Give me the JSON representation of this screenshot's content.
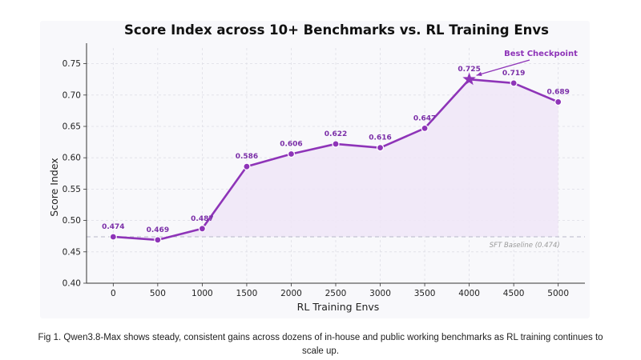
{
  "caption": "Fig 1. Qwen3.8-Max shows steady, consistent gains across dozens of in-house and public working benchmarks as RL training continues to scale up.",
  "colors": {
    "line": "#8e34b8",
    "fill": "#f0e6f7",
    "data_label": "#7b2fa8",
    "baseline": "#b8b8c8",
    "grid": "#dedee6",
    "background": "#f8f8fb"
  },
  "chart_data": {
    "type": "line",
    "title": "Score Index across 10+ Benchmarks vs. RL Training Envs",
    "xlabel": "RL Training Envs",
    "ylabel": "Score Index",
    "x": [
      0,
      500,
      1000,
      1500,
      2000,
      2500,
      3000,
      3500,
      4000,
      4500,
      5000
    ],
    "x_tick_labels": [
      "0",
      "500",
      "1000",
      "1500",
      "2000",
      "2500",
      "3000",
      "3500",
      "4000",
      "4500",
      "5000"
    ],
    "series": [
      {
        "values": [
          0.474,
          0.469,
          0.487,
          0.586,
          0.606,
          0.622,
          0.616,
          0.647,
          0.725,
          0.719,
          0.689
        ],
        "data_labels": [
          "0.474",
          "0.469",
          "0.487",
          "0.586",
          "0.606",
          "0.622",
          "0.616",
          "0.647",
          "0.725",
          "0.719",
          "0.689"
        ],
        "marker": "circle",
        "highlight_index": 8,
        "highlight_marker": "star",
        "area_fill": true
      }
    ],
    "xlim": [
      -300,
      5300
    ],
    "ylim": [
      0.4,
      0.775
    ],
    "y_ticks": [
      0.4,
      0.45,
      0.5,
      0.55,
      0.6,
      0.65,
      0.7,
      0.75
    ],
    "y_tick_labels": [
      "0.40",
      "0.45",
      "0.50",
      "0.55",
      "0.60",
      "0.65",
      "0.70",
      "0.75"
    ],
    "grid": true,
    "baseline": {
      "value": 0.474,
      "label": "SFT Baseline (0.474)",
      "style": "dashed"
    },
    "annotation": {
      "text": "Best Checkpoint",
      "x": 4000,
      "y": 0.725
    }
  }
}
